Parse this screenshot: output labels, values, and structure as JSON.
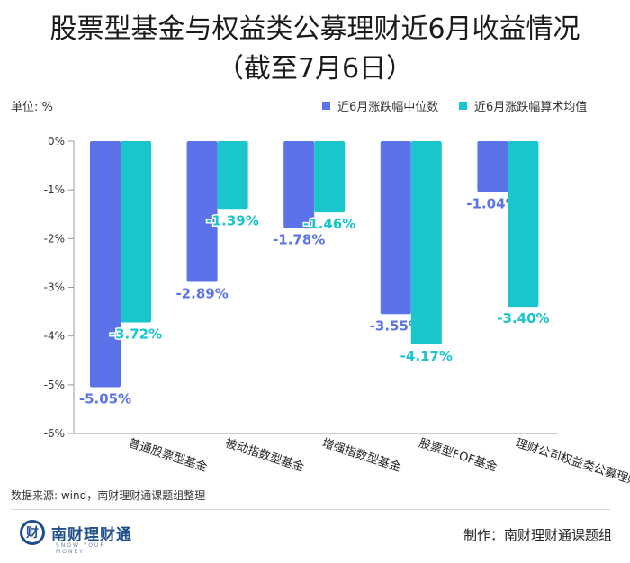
{
  "header": {
    "title_line1": "股票型基金与权益类公募理财近6月收益情况",
    "title_line2": "（截至7月6日）"
  },
  "unit_label": "单位: %",
  "chart_data": {
    "type": "bar",
    "title": "股票型基金与权益类公募理财近6月收益情况（截至7月6日）",
    "ylabel": "单位: %",
    "ylim": [
      -6,
      0
    ],
    "yticks": [
      0,
      -1,
      -2,
      -3,
      -4,
      -5,
      -6
    ],
    "ytick_labels": [
      "0%",
      "-1%",
      "-2%",
      "-3%",
      "-4%",
      "-5%",
      "-6%"
    ],
    "categories": [
      "普通股票型基金",
      "被动指数型基金",
      "增强指数型基金",
      "股票型FOF基金",
      "理财公司权益类公募理财"
    ],
    "series": [
      {
        "name": "近6月涨跌幅中位数",
        "color": "#5b72e8",
        "values": [
          -5.05,
          -2.89,
          -1.78,
          -3.55,
          -1.04
        ],
        "labels": [
          "-5.05%",
          "-2.89%",
          "-1.78%",
          "-3.55%",
          "-1.04%"
        ]
      },
      {
        "name": "近6月涨跌幅算术均值",
        "color": "#18c6cc",
        "values": [
          -3.72,
          -1.39,
          -1.46,
          -4.17,
          -3.4
        ],
        "labels": [
          "-3.72%",
          "-1.39%",
          "-1.46%",
          "-4.17%",
          "-3.40%"
        ]
      }
    ],
    "legend_position": "top-right",
    "grid": false
  },
  "footer": {
    "source": "数据来源: wind，南财理财通课题组整理",
    "brand_name": "南财理财通",
    "brand_mark": "财",
    "brand_sub": "SNOW YOUR MONEY",
    "credit": "制作：南财理财通课题组"
  }
}
